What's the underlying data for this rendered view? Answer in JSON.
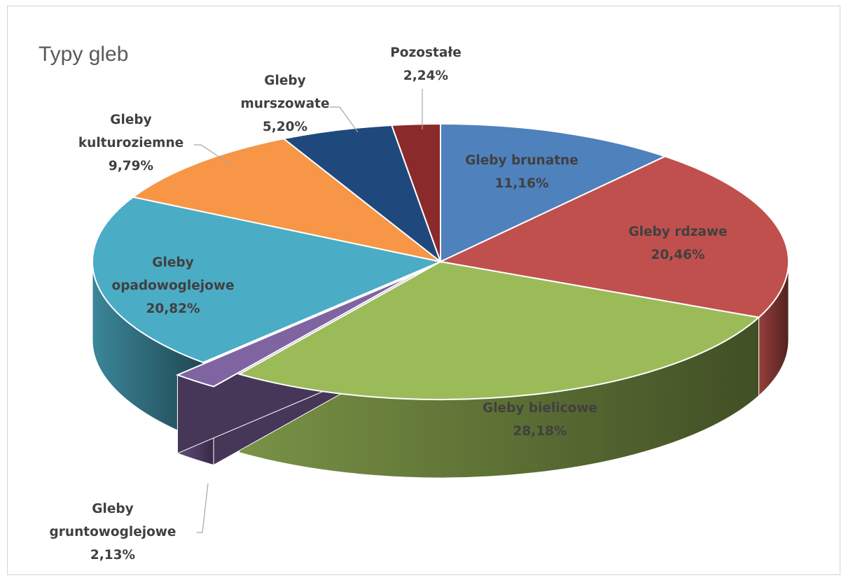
{
  "chart_data": {
    "type": "pie",
    "title": "Typy gleb",
    "three_d": true,
    "slices": [
      {
        "name": "Gleby brunatne",
        "lines": [
          "Gleby brunatne"
        ],
        "value": 11.16,
        "label": "11,16%",
        "color": "#4f81bd"
      },
      {
        "name": "Gleby rdzawe",
        "lines": [
          "Gleby rdzawe"
        ],
        "value": 20.46,
        "label": "20,46%",
        "color": "#c0504d"
      },
      {
        "name": "Gleby bielicowe",
        "lines": [
          "Gleby bielicowe"
        ],
        "value": 28.18,
        "label": "28,18%",
        "color": "#9bbb59"
      },
      {
        "name": "Gleby gruntowoglejowe",
        "lines": [
          "Gleby",
          "gruntowoglejowe"
        ],
        "value": 2.13,
        "label": "2,13%",
        "color": "#8064a2"
      },
      {
        "name": "Gleby opadowoglejowe",
        "lines": [
          "Gleby",
          "opadowoglejowe"
        ],
        "value": 20.82,
        "label": "20,82%",
        "color": "#4bacc6"
      },
      {
        "name": "Gleby kulturoziemne",
        "lines": [
          "Gleby",
          "kulturoziemne"
        ],
        "value": 9.79,
        "label": "9,79%",
        "color": "#f79646"
      },
      {
        "name": "Gleby murszowate",
        "lines": [
          "Gleby",
          "murszowate"
        ],
        "value": 5.2,
        "label": "5,20%",
        "color": "#1f497d"
      },
      {
        "name": "Pozostałe",
        "lines": [
          "Pozostałe"
        ],
        "value": 2.24,
        "label": "2,24%",
        "color": "#8b2a2a"
      }
    ]
  }
}
